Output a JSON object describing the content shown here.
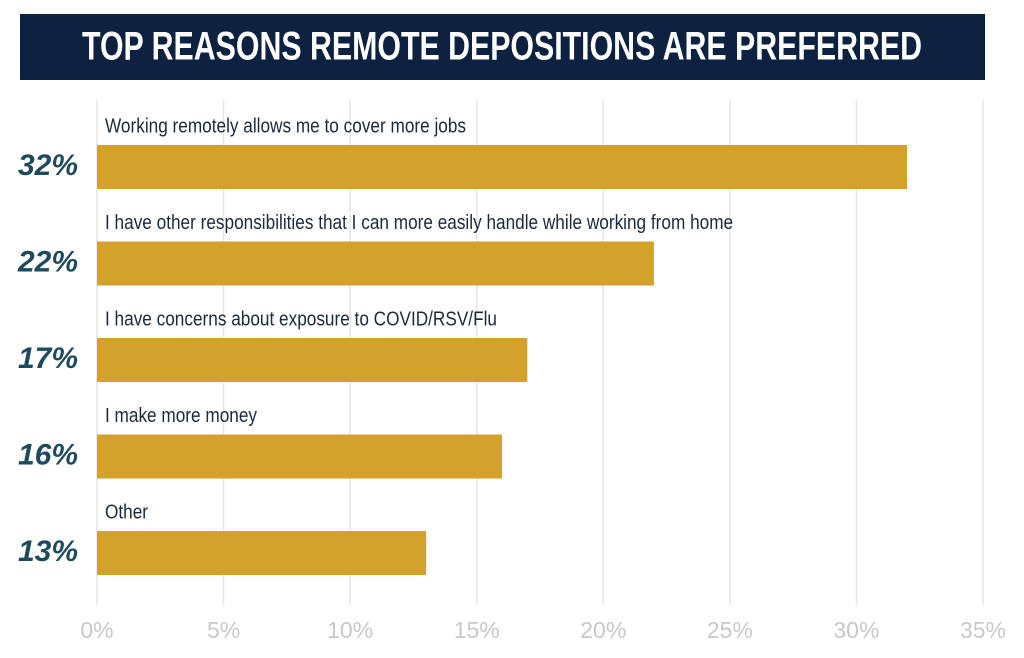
{
  "chart_data": {
    "type": "bar",
    "orientation": "horizontal",
    "title": "TOP REASONS REMOTE DEPOSITIONS ARE PREFERRED",
    "categories": [
      "Working remotely allows me to cover more jobs",
      "I have other responsibilities that I can more easily handle while working from home",
      "I have concerns about exposure to COVID/RSV/Flu",
      "I make more money",
      "Other"
    ],
    "values": [
      32,
      22,
      17,
      16,
      13
    ],
    "value_labels": [
      "32%",
      "22%",
      "17%",
      "16%",
      "13%"
    ],
    "color": "#d4a22c",
    "xlim": [
      0,
      35
    ],
    "xticks": [
      {
        "value": 0,
        "label": "0%"
      },
      {
        "value": 5,
        "label": "5%"
      },
      {
        "value": 10,
        "label": "10%"
      },
      {
        "value": 15,
        "label": "15%"
      },
      {
        "value": 20,
        "label": "20%"
      },
      {
        "value": 25,
        "label": "25%"
      },
      {
        "value": 30,
        "label": "30%"
      },
      {
        "value": 35,
        "label": "35%"
      }
    ],
    "grid": true
  }
}
